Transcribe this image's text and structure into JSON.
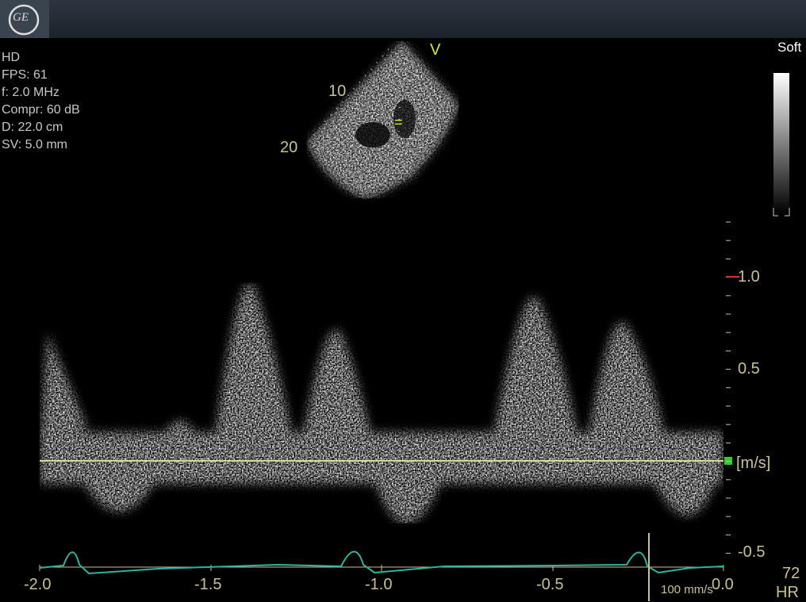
{
  "logo": "GE",
  "info": [
    "HD",
    "FPS: 61",
    "f: 2.0 MHz",
    "Compr: 60 dB",
    "D: 22.0 cm",
    "SV: 5.0 mm"
  ],
  "image": {
    "depth_marks": [
      "10",
      "20"
    ],
    "marker": "V",
    "cursor": "="
  },
  "gray_map": "Soft",
  "velocity_axis": {
    "ticks": [
      "1.0",
      "0.5",
      "-0.5"
    ],
    "unit": "[m/s]"
  },
  "time_axis": {
    "ticks": [
      "-2.0",
      "-1.5",
      "-1.0",
      "-0.5",
      "0.0"
    ]
  },
  "sweep_speed": "100 mm/s",
  "heart_rate": {
    "value": "72",
    "label": "HR"
  }
}
